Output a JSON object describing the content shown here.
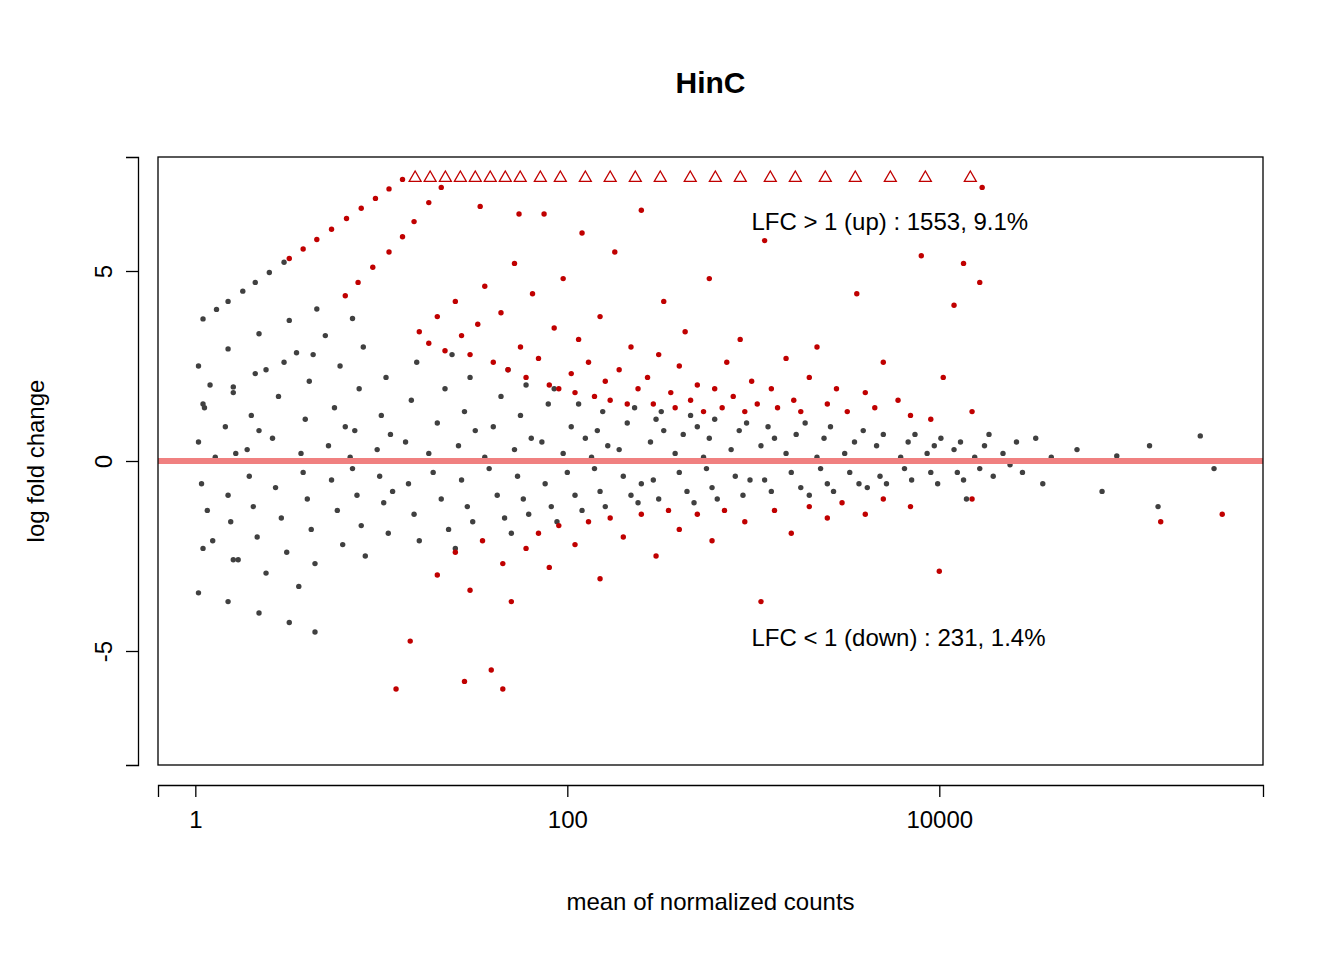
{
  "chart_data": {
    "type": "scatter",
    "title": "HinC",
    "x_label": "mean of normalized counts",
    "y_label": "log fold change",
    "annotations": [
      "LFC > 1 (up) : 1553, 9.1%",
      "LFC < 1 (down) : 231, 1.4%"
    ],
    "log": "x",
    "xlim": [
      0.63,
      550000
    ],
    "ylim": [
      -8,
      8
    ],
    "xticks": [
      1,
      100,
      10000
    ],
    "yticks": [
      -5,
      0,
      5
    ],
    "reference_line": {
      "value": 0,
      "color": "#f08080"
    },
    "series": [
      {
        "color": "#404040",
        "marker": "circle",
        "x": [
          1.04,
          1.08,
          1.12,
          1.16,
          1.2,
          1.24,
          1.28,
          1.45,
          1.5,
          1.55,
          1.6,
          1.65,
          1.7,
          1.9,
          1.95,
          2.0,
          2.05,
          2.1,
          2.15,
          2.2,
          2.6,
          2.7,
          2.8,
          2.9,
          3.0,
          3.1,
          3.2,
          3.7,
          3.8,
          3.9,
          4.0,
          4.1,
          4.2,
          4.3,
          4.4,
          5.2,
          5.4,
          5.6,
          5.8,
          6.0,
          6.2,
          6.4,
          6.8,
          7.0,
          7.2,
          7.4,
          7.6,
          7.8,
          8.0,
          8.2,
          9.5,
          9.8,
          10,
          10.3,
          10.6,
          10.9,
          11.2,
          11.5,
          13,
          13.5,
          14,
          14.5,
          15,
          15.5,
          16,
          18,
          19,
          20,
          21,
          22,
          23,
          24,
          25,
          26,
          27,
          28,
          29,
          30,
          31,
          32,
          36,
          38,
          40,
          42,
          44,
          46,
          48,
          50,
          52,
          54,
          56,
          58,
          60,
          62,
          64,
          70,
          73,
          76,
          79,
          82,
          85,
          88,
          95,
          100,
          105,
          110,
          115,
          120,
          125,
          135,
          140,
          145,
          150,
          155,
          160,
          165,
          190,
          200,
          210,
          220,
          230,
          240,
          250,
          270,
          280,
          290,
          300,
          310,
          320,
          330,
          380,
          400,
          420,
          440,
          460,
          480,
          500,
          540,
          560,
          580,
          600,
          620,
          640,
          760,
          800,
          840,
          880,
          920,
          960,
          1050,
          1100,
          1150,
          1200,
          1250,
          1300,
          1500,
          1600,
          1700,
          1800,
          1900,
          2000,
          2200,
          2300,
          2400,
          2500,
          2600,
          2700,
          3100,
          3300,
          3500,
          3700,
          3900,
          4100,
          4400,
          4600,
          4800,
          5000,
          5200,
          6200,
          6500,
          6800,
          7100,
          7400,
          8600,
          9000,
          9400,
          9800,
          10200,
          11500,
          12000,
          12500,
          13000,
          13500,
          14000,
          15500,
          16500,
          17500,
          18500,
          19500,
          22000,
          24000,
          26000,
          28000,
          33000,
          36000,
          40000,
          55000,
          75000,
          90000,
          135000,
          150000,
          253000,
          300000,
          1.1,
          1.3,
          1.5,
          1.8,
          2.1,
          2.5,
          3.0,
          1.04,
          1.5,
          2.2,
          3.2,
          4.5,
          1.1,
          1.6,
          2.4,
          3.5,
          5,
          7,
          1.04,
          1.5,
          2.2,
          3.2,
          4.4,
          1.1,
          1.6,
          2.4,
          3.6
        ],
        "values": [
          0.5,
          -0.6,
          1.4,
          -1.3,
          2.0,
          -2.1,
          0.1,
          0.9,
          -0.9,
          -1.6,
          1.8,
          0.2,
          -2.6,
          0.3,
          -0.4,
          1.2,
          -1.2,
          2.3,
          -2.0,
          0.8,
          0.6,
          -0.7,
          1.7,
          -1.5,
          2.6,
          -2.4,
          0.0,
          0.2,
          -0.3,
          1.1,
          -1.0,
          2.1,
          -1.8,
          2.8,
          -2.7,
          0.4,
          -0.5,
          1.4,
          -1.3,
          2.5,
          -2.2,
          0.9,
          0.1,
          -0.2,
          0.8,
          -0.9,
          1.9,
          -1.7,
          3.0,
          -2.5,
          0.3,
          -0.4,
          1.2,
          -1.1,
          2.2,
          -1.9,
          0.7,
          -0.8,
          0.0,
          0.5,
          -0.6,
          1.6,
          -1.4,
          2.6,
          -2.1,
          0.2,
          -0.3,
          1.0,
          -1.0,
          1.9,
          -1.8,
          2.8,
          -2.3,
          0.4,
          -0.5,
          1.3,
          -1.2,
          2.2,
          -1.6,
          0.8,
          0.1,
          -0.2,
          0.9,
          -0.9,
          1.7,
          -1.5,
          2.4,
          -1.9,
          0.3,
          -0.4,
          1.2,
          -1.0,
          2.0,
          -1.4,
          0.6,
          0.0,
          0.5,
          -0.6,
          1.5,
          -1.2,
          1.9,
          -1.6,
          0.2,
          -0.3,
          0.9,
          -0.9,
          1.5,
          -1.3,
          0.6,
          0.1,
          -0.2,
          0.8,
          -0.8,
          1.3,
          -1.2,
          0.4,
          0.3,
          -0.4,
          1.0,
          -0.9,
          1.4,
          -1.1,
          -0.6,
          0.0,
          0.5,
          -0.5,
          1.1,
          -1.0,
          1.3,
          0.8,
          0.2,
          -0.3,
          0.7,
          -0.8,
          1.2,
          -1.1,
          0.9,
          0.1,
          -0.2,
          0.6,
          -0.7,
          1.1,
          -1.0,
          0.3,
          -0.4,
          0.8,
          -0.9,
          1.0,
          -0.5,
          0.0,
          0.4,
          -0.5,
          0.9,
          -0.8,
          0.6,
          0.2,
          -0.3,
          0.7,
          -0.7,
          1.0,
          -0.9,
          0.1,
          -0.2,
          0.6,
          -0.6,
          0.9,
          -0.8,
          0.2,
          -0.3,
          0.5,
          -0.6,
          0.8,
          -0.7,
          0.0,
          0.4,
          -0.4,
          0.7,
          -0.6,
          0.1,
          -0.2,
          0.5,
          -0.5,
          0.7,
          0.2,
          -0.3,
          0.4,
          -0.6,
          0.6,
          0.0,
          0.3,
          -0.3,
          0.5,
          -0.5,
          -1.0,
          0.1,
          -0.2,
          0.4,
          0.7,
          -0.4,
          0.2,
          -0.1,
          0.5,
          -0.3,
          0.6,
          -0.6,
          0.1,
          0.3,
          -0.8,
          0.13,
          0.4,
          -1.2,
          0.66,
          -0.2,
          3.74,
          3.99,
          4.2,
          4.47,
          4.7,
          4.96,
          5.23,
          2.5,
          2.95,
          3.35,
          3.7,
          4.0,
          1.5,
          1.95,
          2.4,
          2.85,
          3.3,
          3.75,
          -3.47,
          -3.7,
          -4.0,
          -4.25,
          -4.5,
          -2.3,
          -2.6,
          -2.95,
          -3.3
        ]
      },
      {
        "color": "#c00000",
        "marker": "circle",
        "x": [
          3.2,
          3.8,
          4.5,
          5.4,
          6.5,
          7.8,
          9.3,
          11,
          13,
          6.4,
          7.5,
          9,
          11,
          13,
          15,
          18,
          21,
          16,
          18,
          20,
          22,
          25,
          27,
          30,
          33,
          36,
          40,
          44,
          48,
          52,
          56,
          60,
          65,
          70,
          75,
          80,
          85,
          90,
          95,
          105,
          110,
          115,
          120,
          130,
          140,
          150,
          160,
          170,
          180,
          190,
          210,
          220,
          240,
          250,
          270,
          290,
          310,
          330,
          360,
          380,
          400,
          430,
          460,
          500,
          540,
          580,
          620,
          680,
          720,
          780,
          850,
          900,
          980,
          1050,
          1150,
          1250,
          1350,
          1500,
          1650,
          1800,
          2000,
          2200,
          2500,
          2800,
          3200,
          3600,
          4000,
          4500,
          5000,
          6000,
          7000,
          8000,
          9000,
          10500,
          12000,
          13500,
          15000,
          16500,
          17000,
          34,
          55,
          20,
          25,
          30,
          35,
          45,
          50,
          60,
          70,
          80,
          90,
          110,
          130,
          150,
          170,
          200,
          250,
          300,
          350,
          400,
          500,
          600,
          700,
          900,
          1100,
          1300,
          1600,
          2000,
          2500,
          3000,
          4000,
          5000,
          7000,
          10000,
          15000,
          155000,
          332000,
          14.3,
          28,
          45,
          39,
          12
        ],
        "values": [
          5.33,
          5.58,
          5.83,
          6.1,
          6.38,
          6.65,
          6.91,
          7.16,
          7.41,
          4.35,
          4.7,
          5.1,
          5.5,
          5.9,
          6.3,
          6.8,
          7.2,
          3.4,
          3.1,
          3.8,
          2.9,
          4.2,
          3.3,
          2.8,
          3.6,
          4.6,
          2.6,
          3.9,
          2.4,
          5.2,
          3.0,
          2.2,
          4.4,
          2.7,
          6.5,
          2.0,
          3.5,
          1.9,
          4.8,
          2.3,
          1.8,
          3.2,
          6.0,
          2.6,
          1.7,
          3.8,
          2.1,
          1.6,
          5.5,
          2.4,
          1.5,
          3.0,
          1.9,
          6.6,
          2.2,
          1.5,
          2.8,
          4.2,
          1.8,
          1.4,
          2.5,
          3.4,
          1.6,
          2.0,
          1.3,
          4.8,
          1.9,
          1.4,
          2.6,
          1.7,
          3.2,
          1.3,
          2.1,
          1.5,
          5.8,
          1.9,
          1.4,
          2.7,
          1.6,
          1.3,
          2.2,
          3.0,
          1.5,
          1.9,
          1.3,
          4.4,
          1.8,
          1.4,
          2.6,
          1.6,
          1.2,
          5.4,
          1.1,
          2.2,
          4.1,
          5.2,
          1.3,
          4.7,
          7.2,
          6.7,
          6.5,
          -3.0,
          -2.4,
          -3.4,
          -2.1,
          -2.7,
          -3.7,
          -2.3,
          -1.9,
          -2.8,
          -1.7,
          -2.2,
          -1.6,
          -3.1,
          -1.5,
          -2.0,
          -1.4,
          -2.5,
          -1.3,
          -1.8,
          -1.4,
          -2.1,
          -1.3,
          -1.6,
          -3.7,
          -1.3,
          -1.9,
          -1.2,
          -1.5,
          -1.1,
          -1.4,
          -1.0,
          -1.2,
          -2.9,
          -1.0,
          -1.6,
          -1.4,
          -4.74,
          -5.8,
          -6.0,
          -5.5,
          -6.0
        ]
      },
      {
        "color": "#c00000",
        "marker": "open-triangle",
        "x": [
          15.2,
          18.3,
          22.1,
          26.6,
          32,
          38.5,
          46.4,
          55.8,
          71.6,
          91.7,
          125,
          170,
          232,
          316,
          458,
          625,
          851,
          1234,
          1682,
          2438,
          3534,
          5454,
          8414,
          14680
        ],
        "values": [
          7.45,
          7.45,
          7.45,
          7.45,
          7.45,
          7.45,
          7.45,
          7.45,
          7.45,
          7.45,
          7.45,
          7.45,
          7.45,
          7.45,
          7.45,
          7.45,
          7.45,
          7.45,
          7.45,
          7.45,
          7.45,
          7.45,
          7.45,
          7.45
        ]
      }
    ]
  }
}
